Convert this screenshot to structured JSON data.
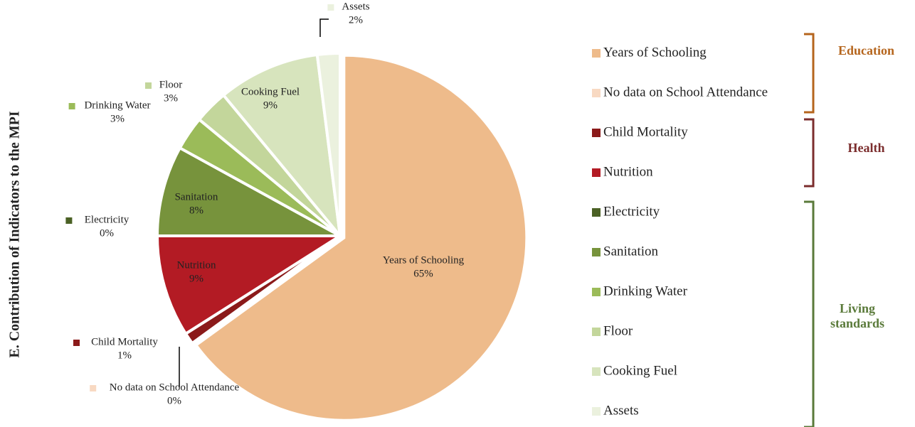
{
  "chart_data": {
    "type": "pie",
    "title": "E. Contribution of Indicators to the MPI",
    "categories": [
      "Years of Schooling",
      "No data on School Attendance",
      "Child Mortality",
      "Nutrition",
      "Electricity",
      "Sanitation",
      "Drinking Water",
      "Floor",
      "Cooking Fuel",
      "Assets"
    ],
    "values": [
      65,
      0,
      1,
      9,
      0,
      8,
      3,
      3,
      9,
      2
    ],
    "value_labels": [
      "65%",
      "0%",
      "1%",
      "9%",
      "0%",
      "8%",
      "3%",
      "3%",
      "9%",
      "2%"
    ],
    "colors": [
      "#eebb8b",
      "#f8d9c2",
      "#8b1a1a",
      "#b31b24",
      "#4b6125",
      "#77933c",
      "#9bbb59",
      "#c3d69b",
      "#d7e4bd",
      "#ebf1de"
    ],
    "groups": [
      {
        "name": "Education",
        "color": "#b5651d"
      },
      {
        "name": "Health",
        "color": "#7b2d2d"
      },
      {
        "name": "Living standards",
        "color": "#5a7a3a"
      }
    ]
  }
}
